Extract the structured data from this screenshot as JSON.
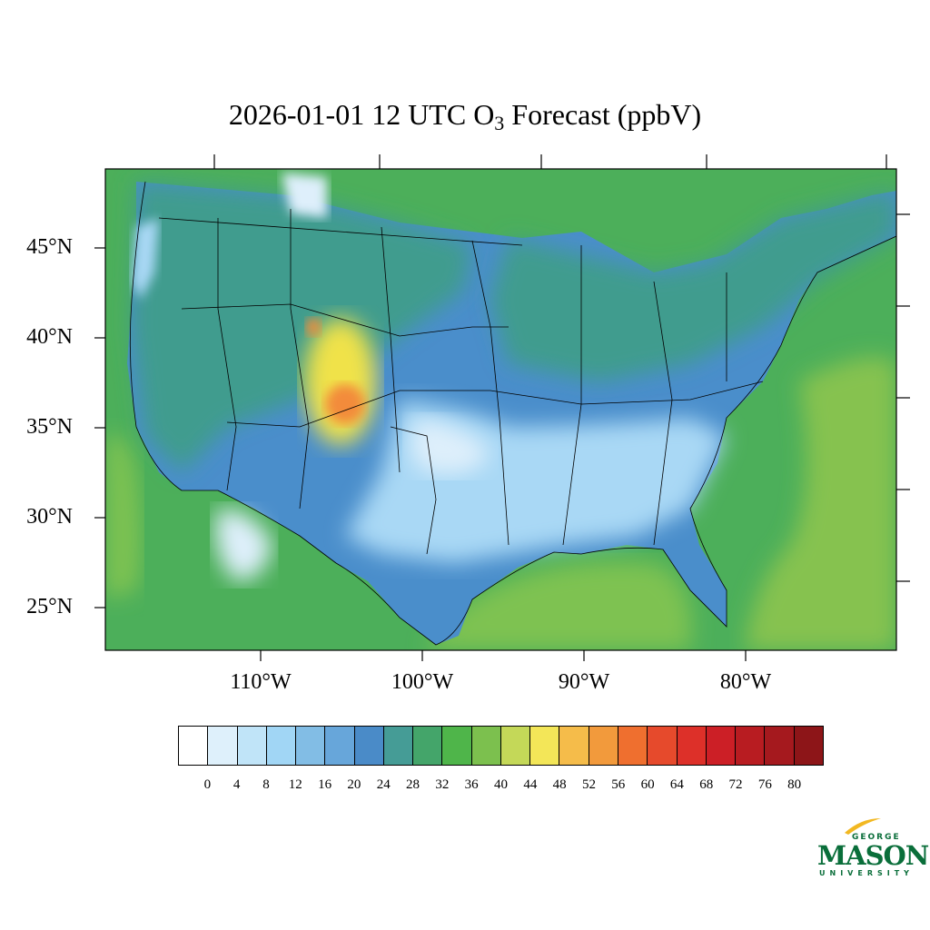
{
  "title": {
    "prefix": "2026-01-01 12 UTC O",
    "subscript": "3",
    "suffix": " Forecast (ppbV)"
  },
  "map": {
    "lat_labels": [
      "45°N",
      "40°N",
      "35°N",
      "30°N",
      "25°N"
    ],
    "lon_labels": [
      "110°W",
      "100°W",
      "90°W",
      "80°W"
    ],
    "colors": {
      "ocean": "#4caf5a",
      "land_mid": "#4a8ecb",
      "land_high_plains": "#63a4d8",
      "south_low": "#a9d8f5",
      "very_low": "#deeffb",
      "west_mid": "#3f9c8e",
      "rockies_high": "#f0e24a",
      "rockies_peak": "#f38b3a",
      "gulf": "#7ec251",
      "atlantic_high": "#86c24f"
    }
  },
  "colorbar": {
    "colors": [
      "#ffffff",
      "#def0fb",
      "#c0e4f8",
      "#a1d6f5",
      "#82bde5",
      "#67a6da",
      "#4a8bc8",
      "#459c96",
      "#44a56a",
      "#4fb54a",
      "#7cc04e",
      "#c4d858",
      "#f3e658",
      "#f5bc4a",
      "#f29a3c",
      "#ef6f2f",
      "#e64a2c",
      "#dd3029",
      "#cc1f26",
      "#b81c21",
      "#a5191e",
      "#8d1518"
    ],
    "ticks": [
      "0",
      "4",
      "8",
      "12",
      "16",
      "20",
      "24",
      "28",
      "32",
      "36",
      "40",
      "44",
      "48",
      "52",
      "56",
      "60",
      "64",
      "68",
      "72",
      "76",
      "80"
    ]
  },
  "logo": {
    "top": "GEORGE",
    "main": "MASON",
    "bottom": "UNIVERSITY"
  }
}
